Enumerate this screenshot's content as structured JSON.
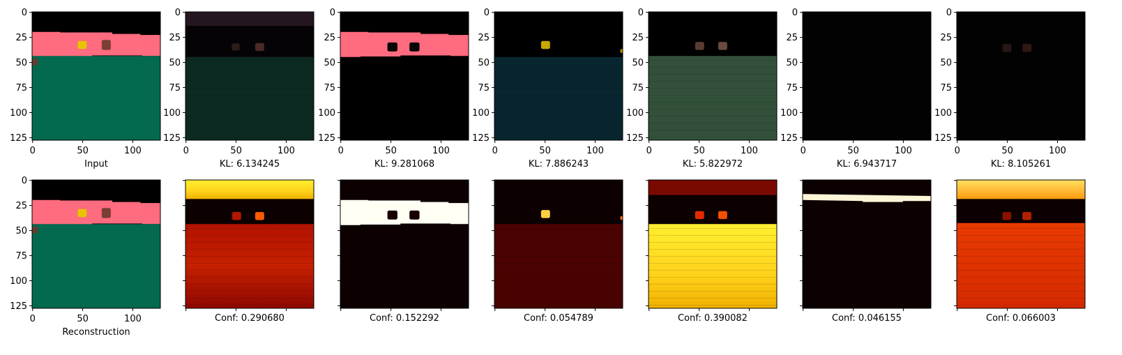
{
  "figure": {
    "x_ticks": [
      "0",
      "50",
      "100"
    ],
    "y_ticks": [
      "0",
      "25",
      "50",
      "75",
      "100",
      "125"
    ],
    "top_row": [
      {
        "caption": "Input",
        "kind": "scene"
      },
      {
        "caption": "KL: 6.134245",
        "kind": "rgb_floor_green"
      },
      {
        "caption": "KL: 9.281068",
        "kind": "rgb_wall_pink"
      },
      {
        "caption": "KL: 7.886243",
        "kind": "rgb_floor_cyan"
      },
      {
        "caption": "KL: 5.822972",
        "kind": "rgb_floor_olive"
      },
      {
        "caption": "KL: 6.943717",
        "kind": "rgb_black"
      },
      {
        "caption": "KL: 8.105261",
        "kind": "rgb_objects_faint"
      }
    ],
    "bottom_row": [
      {
        "caption": "Reconstruction",
        "kind": "scene"
      },
      {
        "caption": "Conf: 0.290680",
        "kind": "heat_floor_red"
      },
      {
        "caption": "Conf: 0.152292",
        "kind": "heat_wall"
      },
      {
        "caption": "Conf: 0.054789",
        "kind": "heat_dark"
      },
      {
        "caption": "Conf: 0.390082",
        "kind": "heat_floor_yellow"
      },
      {
        "caption": "Conf: 0.046155",
        "kind": "heat_sky"
      },
      {
        "caption": "Conf: 0.066003",
        "kind": "heat_sky_floor"
      }
    ],
    "colors": {
      "sky": "#000000",
      "wall": "#ff6b7f",
      "floor": "#03694f",
      "object_yellow": "#e8c400",
      "object_brown": "#7a3e34"
    }
  }
}
